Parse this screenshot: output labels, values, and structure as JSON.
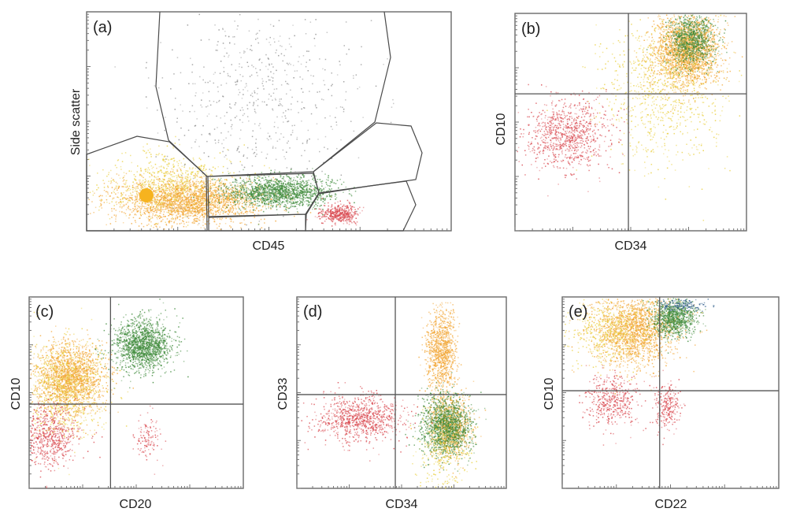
{
  "figure": {
    "palette": {
      "orange": "#f2a533",
      "yellow": "#e9cf3c",
      "green": "#3e8a3a",
      "red": "#d9474e",
      "grey": "#8d8d8d",
      "blue": "#2f5d8a"
    }
  },
  "chart_data": [
    {
      "panel": "(a)",
      "type": "scatter",
      "xlabel": "CD45",
      "ylabel": "Side scatter",
      "gates": 6,
      "populations": [
        {
          "color": "orange",
          "x": 0.28,
          "y": 0.14,
          "sx": 0.1,
          "sy": 0.05,
          "n": 2400
        },
        {
          "color": "yellow",
          "x": 0.22,
          "y": 0.22,
          "sx": 0.09,
          "sy": 0.07,
          "n": 700
        },
        {
          "color": "green",
          "x": 0.53,
          "y": 0.18,
          "sx": 0.07,
          "sy": 0.035,
          "n": 1500
        },
        {
          "color": "red",
          "x": 0.69,
          "y": 0.08,
          "sx": 0.025,
          "sy": 0.02,
          "n": 420
        },
        {
          "color": "grey",
          "x": 0.47,
          "y": 0.62,
          "sx": 0.13,
          "sy": 0.22,
          "n": 600
        }
      ]
    },
    {
      "panel": "(b)",
      "type": "scatter",
      "xlabel": "CD34",
      "ylabel": "CD10",
      "quadrant": {
        "x": 0.49,
        "y": 0.63
      },
      "populations": [
        {
          "color": "orange",
          "x": 0.74,
          "y": 0.83,
          "sx": 0.07,
          "sy": 0.08,
          "n": 2200
        },
        {
          "color": "green",
          "x": 0.76,
          "y": 0.88,
          "sx": 0.05,
          "sy": 0.06,
          "n": 900
        },
        {
          "color": "yellow",
          "x": 0.63,
          "y": 0.65,
          "sx": 0.13,
          "sy": 0.17,
          "n": 900
        },
        {
          "color": "red",
          "x": 0.22,
          "y": 0.44,
          "sx": 0.09,
          "sy": 0.08,
          "n": 900
        }
      ]
    },
    {
      "panel": "(c)",
      "type": "scatter",
      "xlabel": "CD20",
      "ylabel": "CD10",
      "quadrant": {
        "x": 0.38,
        "y": 0.44
      },
      "populations": [
        {
          "color": "orange",
          "x": 0.19,
          "y": 0.58,
          "sx": 0.08,
          "sy": 0.09,
          "n": 1800
        },
        {
          "color": "yellow",
          "x": 0.16,
          "y": 0.52,
          "sx": 0.1,
          "sy": 0.13,
          "n": 800
        },
        {
          "color": "green",
          "x": 0.53,
          "y": 0.75,
          "sx": 0.07,
          "sy": 0.065,
          "n": 1500
        },
        {
          "color": "red",
          "x": 0.08,
          "y": 0.28,
          "sx": 0.07,
          "sy": 0.08,
          "n": 700
        },
        {
          "color": "red",
          "x": 0.55,
          "y": 0.27,
          "sx": 0.03,
          "sy": 0.06,
          "n": 120
        }
      ]
    },
    {
      "panel": "(d)",
      "type": "scatter",
      "xlabel": "CD34",
      "ylabel": "CD33",
      "quadrant": {
        "x": 0.47,
        "y": 0.49
      },
      "populations": [
        {
          "color": "orange",
          "x": 0.69,
          "y": 0.72,
          "sx": 0.035,
          "sy": 0.11,
          "n": 1000
        },
        {
          "color": "orange",
          "x": 0.73,
          "y": 0.33,
          "sx": 0.05,
          "sy": 0.08,
          "n": 900
        },
        {
          "color": "green",
          "x": 0.71,
          "y": 0.33,
          "sx": 0.06,
          "sy": 0.08,
          "n": 1300
        },
        {
          "color": "yellow",
          "x": 0.7,
          "y": 0.18,
          "sx": 0.06,
          "sy": 0.12,
          "n": 300
        },
        {
          "color": "red",
          "x": 0.3,
          "y": 0.37,
          "sx": 0.1,
          "sy": 0.06,
          "n": 900
        }
      ]
    },
    {
      "panel": "(e)",
      "type": "scatter",
      "xlabel": "CD22",
      "ylabel": "CD10",
      "quadrant": {
        "x": 0.45,
        "y": 0.51
      },
      "populations": [
        {
          "color": "orange",
          "x": 0.34,
          "y": 0.83,
          "sx": 0.1,
          "sy": 0.09,
          "n": 1800
        },
        {
          "color": "green",
          "x": 0.51,
          "y": 0.89,
          "sx": 0.05,
          "sy": 0.05,
          "n": 900
        },
        {
          "color": "yellow",
          "x": 0.23,
          "y": 0.82,
          "sx": 0.1,
          "sy": 0.08,
          "n": 500
        },
        {
          "color": "blue",
          "x": 0.55,
          "y": 0.96,
          "sx": 0.06,
          "sy": 0.015,
          "n": 150
        },
        {
          "color": "red",
          "x": 0.22,
          "y": 0.46,
          "sx": 0.06,
          "sy": 0.07,
          "n": 450
        },
        {
          "color": "red",
          "x": 0.48,
          "y": 0.43,
          "sx": 0.03,
          "sy": 0.06,
          "n": 250
        }
      ]
    }
  ]
}
